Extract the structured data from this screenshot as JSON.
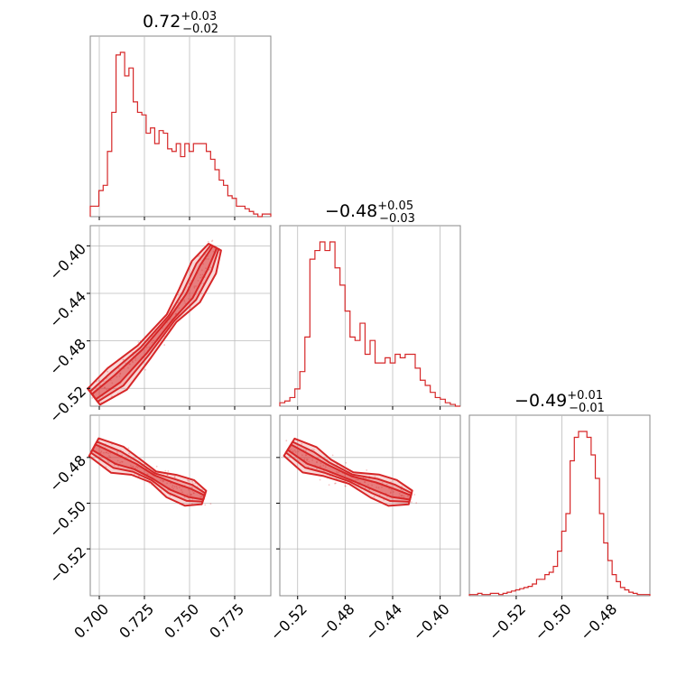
{
  "chart_data": {
    "type": "corner",
    "color": "#d62728",
    "grid": true,
    "parameters": [
      {
        "median": "0.72",
        "plus": "+0.03",
        "minus": "−0.02",
        "range": [
          0.695,
          0.795
        ],
        "ticks": [
          0.7,
          0.725,
          0.75,
          0.775
        ],
        "tick_labels": [
          "0.700",
          "0.725",
          "0.750",
          "0.775"
        ]
      },
      {
        "median": "−0.48",
        "plus": "+0.05",
        "minus": "−0.03",
        "range": [
          -0.535,
          -0.383
        ],
        "ticks": [
          -0.52,
          -0.48,
          -0.44,
          -0.4
        ],
        "tick_labels": [
          "−0.52",
          "−0.48",
          "−0.44",
          "−0.40"
        ]
      },
      {
        "median": "−0.49",
        "plus": "+0.01",
        "minus": "−0.01",
        "range": [
          -0.5405,
          -0.4615
        ],
        "ticks": [
          -0.52,
          -0.5,
          -0.48
        ],
        "tick_labels": [
          "−0.52",
          "−0.50",
          "−0.48"
        ]
      }
    ],
    "histograms": [
      {
        "param": 0,
        "bin_edges_range": [
          0.695,
          0.795
        ],
        "counts": [
          4,
          4,
          10,
          12,
          25,
          40,
          62,
          63,
          54,
          57,
          44,
          40,
          39,
          32,
          34,
          28,
          33,
          32,
          26,
          25,
          28,
          23,
          28,
          25,
          28,
          28,
          28,
          25,
          22,
          18,
          14,
          12,
          8,
          7,
          4,
          4,
          3,
          2,
          1,
          0,
          1,
          1
        ]
      },
      {
        "param": 1,
        "bin_edges_range": [
          -0.535,
          -0.383
        ],
        "counts": [
          2,
          3,
          5,
          10,
          20,
          40,
          85,
          90,
          95,
          90,
          95,
          80,
          70,
          55,
          40,
          38,
          48,
          30,
          38,
          25,
          25,
          28,
          25,
          30,
          28,
          30,
          30,
          22,
          15,
          12,
          8,
          5,
          4,
          2,
          1,
          0
        ]
      },
      {
        "param": 2,
        "bin_edges_range": [
          -0.5405,
          -0.4615
        ],
        "counts": [
          1,
          1,
          2,
          1,
          1,
          2,
          2,
          1,
          2,
          3,
          4,
          5,
          6,
          7,
          8,
          10,
          14,
          14,
          18,
          20,
          25,
          38,
          55,
          70,
          115,
          135,
          140,
          140,
          135,
          120,
          100,
          70,
          45,
          30,
          18,
          12,
          7,
          5,
          3,
          2,
          1,
          1,
          1
        ]
      }
    ],
    "joint": [
      {
        "params": [
          0,
          1
        ],
        "ridge": [
          [
            0.697,
            -0.527
          ],
          [
            0.71,
            -0.512
          ],
          [
            0.725,
            -0.489
          ],
          [
            0.74,
            -0.461
          ],
          [
            0.75,
            -0.442
          ],
          [
            0.758,
            -0.418
          ],
          [
            0.764,
            -0.401
          ]
        ]
      },
      {
        "params": [
          0,
          2
        ],
        "ridge": [
          [
            0.697,
            -0.4755
          ],
          [
            0.71,
            -0.481
          ],
          [
            0.72,
            -0.484
          ],
          [
            0.73,
            -0.4885
          ],
          [
            0.74,
            -0.4925
          ],
          [
            0.75,
            -0.4955
          ],
          [
            0.758,
            -0.4975
          ]
        ]
      },
      {
        "params": [
          1,
          2
        ],
        "ridge": [
          [
            -0.527,
            -0.4755
          ],
          [
            -0.51,
            -0.481
          ],
          [
            -0.495,
            -0.4845
          ],
          [
            -0.475,
            -0.489
          ],
          [
            -0.455,
            -0.4925
          ],
          [
            -0.44,
            -0.4955
          ],
          [
            -0.425,
            -0.4975
          ]
        ]
      }
    ]
  }
}
